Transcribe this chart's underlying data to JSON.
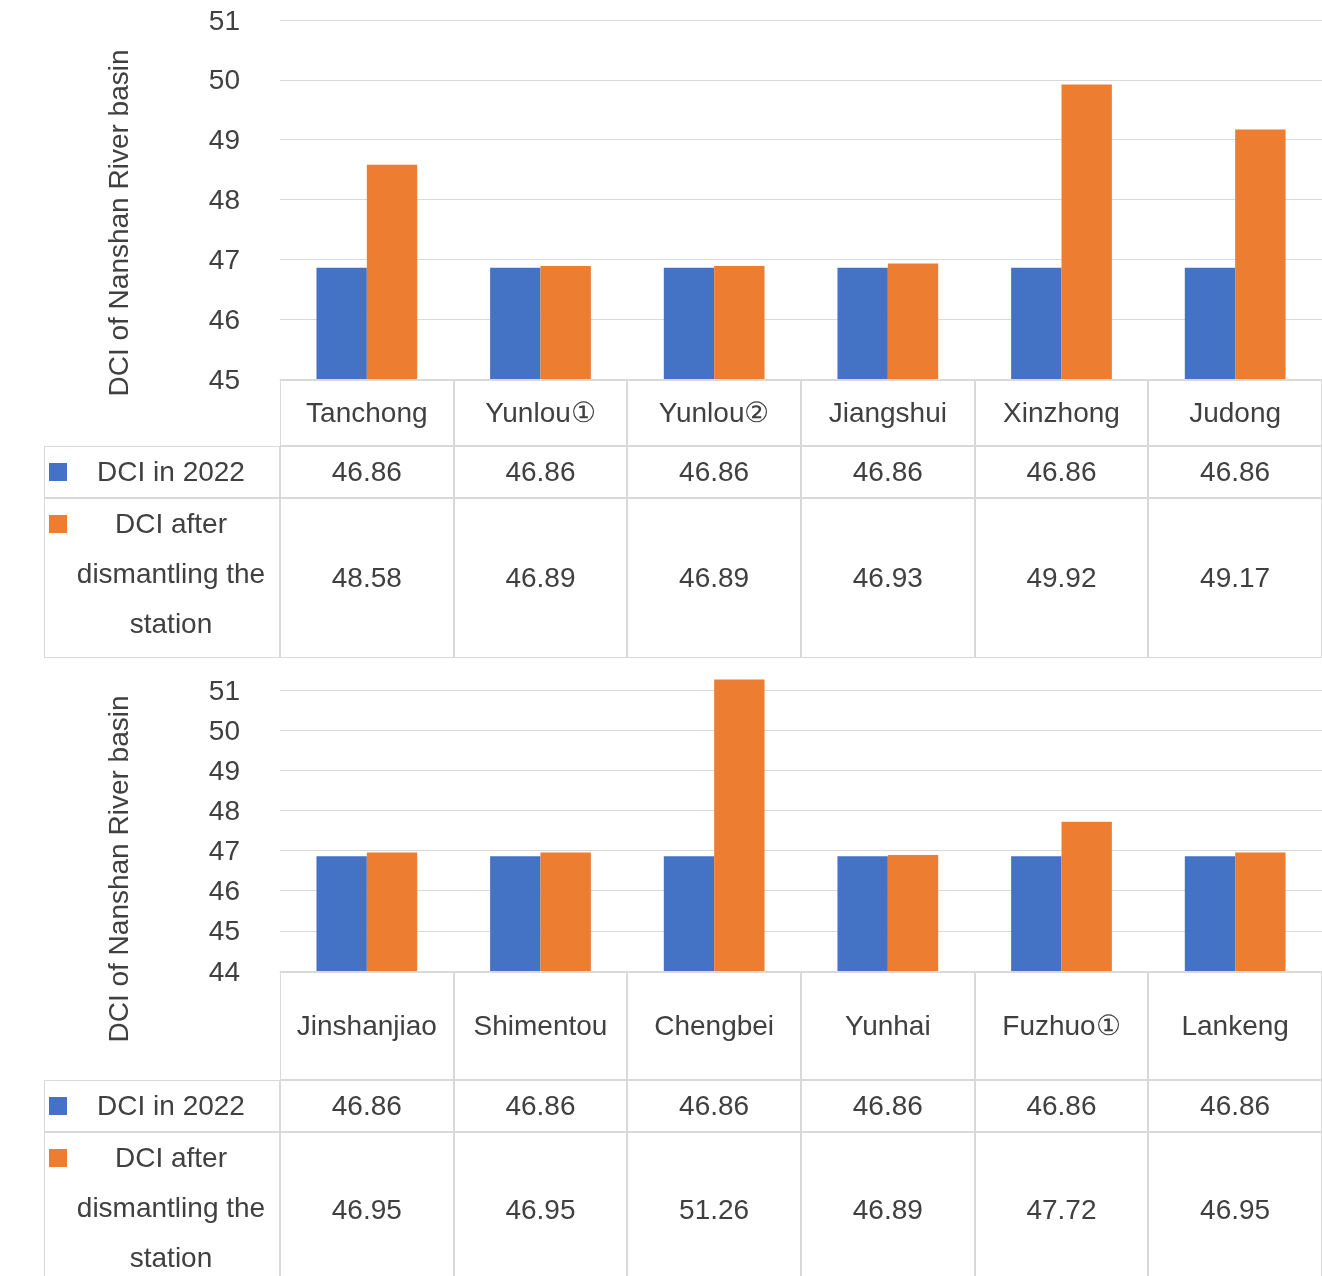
{
  "chart_data": [
    {
      "type": "bar",
      "ylabel": "DCI of Nanshan River basin",
      "categories": [
        "Tanchong",
        "Yunlou①",
        "Yunlou②",
        "Jiangshui",
        "Xinzhong",
        "Judong"
      ],
      "series": [
        {
          "name": "DCI in 2022",
          "color": "#4472c4",
          "values": [
            46.86,
            46.86,
            46.86,
            46.86,
            46.86,
            46.86
          ]
        },
        {
          "name": "DCI after dismantling the station",
          "color": "#ed7d31",
          "values": [
            48.58,
            46.89,
            46.89,
            46.93,
            49.92,
            49.17
          ]
        }
      ],
      "ylim": [
        45,
        51
      ],
      "yticks": [
        45,
        46,
        47,
        48,
        49,
        50,
        51
      ],
      "grid": "y",
      "data_labels": true,
      "legend": "bottom"
    },
    {
      "type": "bar",
      "ylabel": "DCI of Nanshan River basin",
      "categories": [
        "Jinshanjiao",
        "Shimentou",
        "Chengbei",
        "Yunhai",
        "Fuzhuo①",
        "Lankeng"
      ],
      "series": [
        {
          "name": "DCI in 2022",
          "color": "#4472c4",
          "values": [
            46.86,
            46.86,
            46.86,
            46.86,
            46.86,
            46.86
          ]
        },
        {
          "name": "DCI after dismantling the station",
          "color": "#ed7d31",
          "values": [
            46.95,
            46.95,
            51.26,
            46.89,
            47.72,
            46.95
          ]
        }
      ],
      "ylim": [
        44,
        51.3
      ],
      "yticks": [
        44,
        45,
        46,
        47,
        48,
        49,
        50,
        51
      ],
      "grid": "y",
      "data_labels": true,
      "legend": "bottom"
    }
  ]
}
